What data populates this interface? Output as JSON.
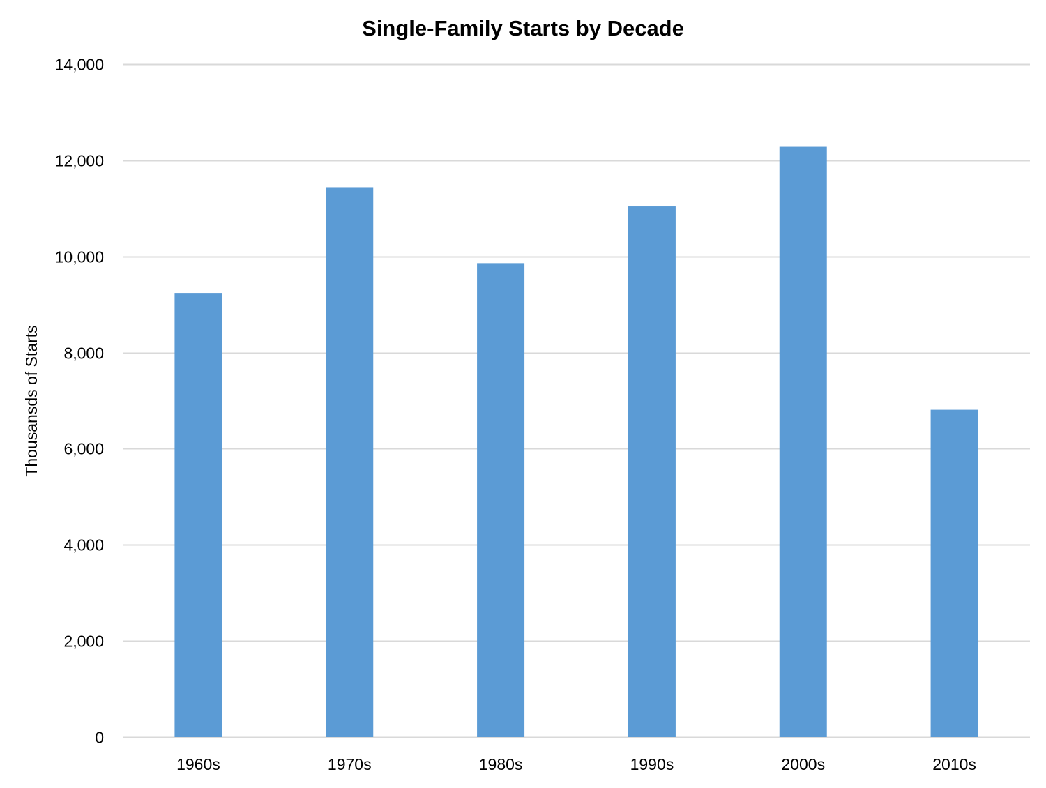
{
  "chart_data": {
    "type": "bar",
    "title": "Single-Family Starts by Decade",
    "xlabel": "",
    "ylabel": "Thousansds of Starts",
    "categories": [
      "1960s",
      "1970s",
      "1980s",
      "1990s",
      "2000s",
      "2010s"
    ],
    "values": [
      9240,
      11440,
      9860,
      11040,
      12280,
      6810
    ],
    "ylim": [
      0,
      14000
    ],
    "yticks": [
      0,
      2000,
      4000,
      6000,
      8000,
      10000,
      12000,
      14000
    ],
    "ytick_labels": [
      "0",
      "2,000",
      "4,000",
      "6,000",
      "8,000",
      "10,000",
      "12,000",
      "14,000"
    ],
    "grid": true,
    "legend": "none",
    "colors": {
      "bar": "#5B9BD5",
      "gridline": "#D9D9D9",
      "text": "#000000"
    }
  }
}
